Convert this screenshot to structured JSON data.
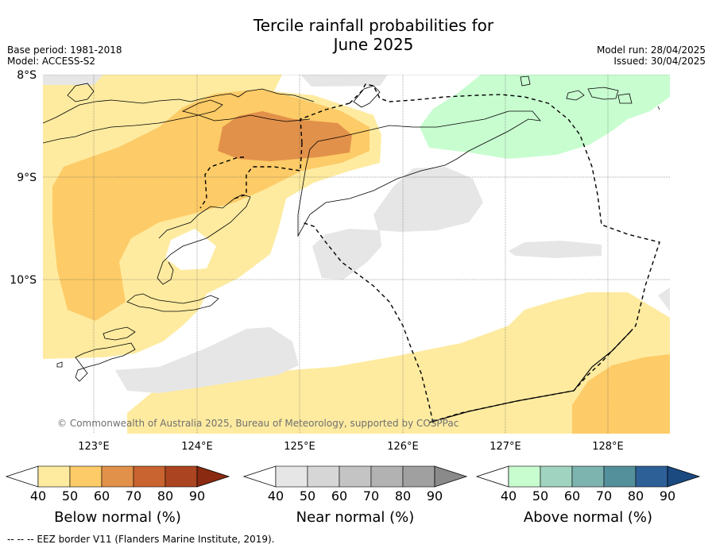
{
  "title_line1": "Tercile rainfall probabilities for",
  "title_line2": "June 2025",
  "meta_left": [
    "Base period: 1981-2018",
    "Model: ACCESS-S2"
  ],
  "meta_right": [
    "Model run: 28/04/2025",
    "Issued: 30/04/2025"
  ],
  "lat_labels": [
    "8°S",
    "9°S",
    "10°S"
  ],
  "lon_labels": [
    "123°E",
    "124°E",
    "125°E",
    "126°E",
    "127°E",
    "128°E"
  ],
  "copyright": "© Commonwealth of Australia 2025, Bureau of Meteorology, supported by COSPPac",
  "colorbars": [
    {
      "label": "Below normal (%)",
      "ticks": [
        "40",
        "50",
        "60",
        "70",
        "80",
        "90"
      ],
      "colors": [
        "#ffffff",
        "#feeba0",
        "#fdcb67",
        "#e2914a",
        "#c9632f",
        "#ab4420",
        "#8a2a10"
      ]
    },
    {
      "label": "Near normal (%)",
      "ticks": [
        "40",
        "50",
        "60",
        "70",
        "80",
        "90"
      ],
      "colors": [
        "#ffffff",
        "#e6e6e6",
        "#d6d6d6",
        "#c4c4c4",
        "#b2b2b2",
        "#a0a0a0",
        "#8a8a8a"
      ]
    },
    {
      "label": "Above normal (%)",
      "ticks": [
        "40",
        "50",
        "60",
        "70",
        "80",
        "90"
      ],
      "colors": [
        "#ffffff",
        "#c8fdd0",
        "#a0d4c0",
        "#7eb4b0",
        "#54909c",
        "#2e6098",
        "#1a4a80"
      ]
    }
  ],
  "footnote": "--  --  -- EEZ border V11 (Flanders Marine Institute, 2019)."
}
